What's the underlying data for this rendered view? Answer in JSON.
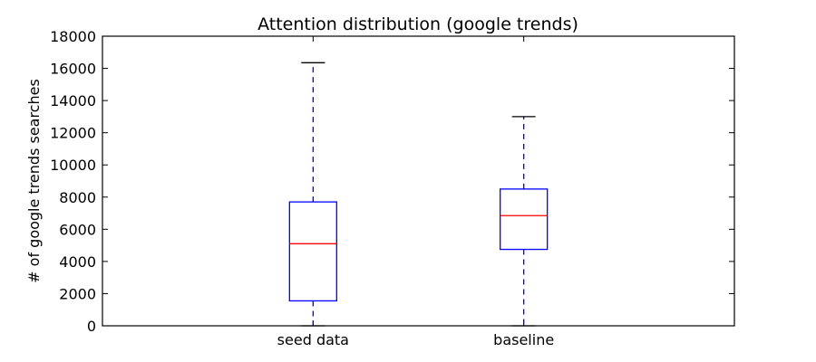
{
  "chart_data": {
    "type": "box",
    "title": "Attention distribution (google trends)",
    "xlabel": "",
    "ylabel": "# of google trends searches",
    "ylim": [
      0,
      18000
    ],
    "yticks": [
      0,
      2000,
      4000,
      6000,
      8000,
      10000,
      12000,
      14000,
      16000,
      18000
    ],
    "categories": [
      "seed data",
      "baseline"
    ],
    "boxes": [
      {
        "category": "seed data",
        "min": 0,
        "q1": 1550,
        "median": 5100,
        "q3": 7700,
        "max": 16350
      },
      {
        "category": "baseline",
        "min": 0,
        "q1": 4750,
        "median": 6850,
        "q3": 8500,
        "max": 13000
      }
    ],
    "grid": false,
    "colors": {
      "box": "#0000ff",
      "whisker": "#0000ff",
      "median": "#ff0000",
      "cap": "#000000",
      "frame": "#000000"
    }
  }
}
